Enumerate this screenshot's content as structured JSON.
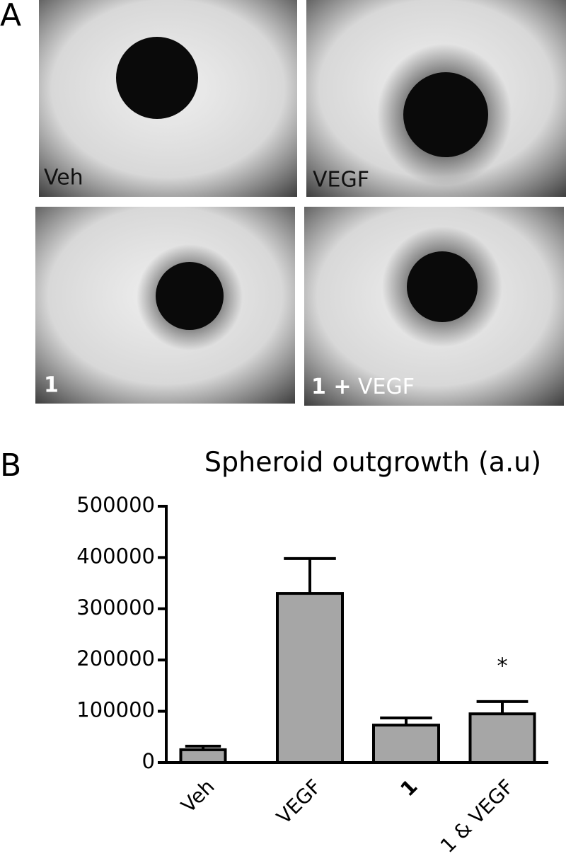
{
  "panel_a": {
    "label": "A",
    "images": [
      {
        "text": "Veh"
      },
      {
        "text": "VEGF"
      },
      {
        "bold": "1"
      },
      {
        "bold": "1 +",
        "text": "VEGF"
      }
    ]
  },
  "panel_b_label": "B",
  "chart_data": {
    "type": "bar",
    "title": "Spheroid outgrowth (a.u)",
    "categories": [
      "Veh",
      "VEGF",
      "1",
      "1 & VEGF"
    ],
    "values": [
      25000,
      330000,
      73000,
      95000
    ],
    "errors": [
      7000,
      68000,
      14000,
      24000
    ],
    "annotation": "*",
    "color": "#a6a6a6",
    "ylim": [
      0,
      500000
    ],
    "yticks": [
      0,
      100000,
      200000,
      300000,
      400000,
      500000
    ],
    "grid": false
  }
}
